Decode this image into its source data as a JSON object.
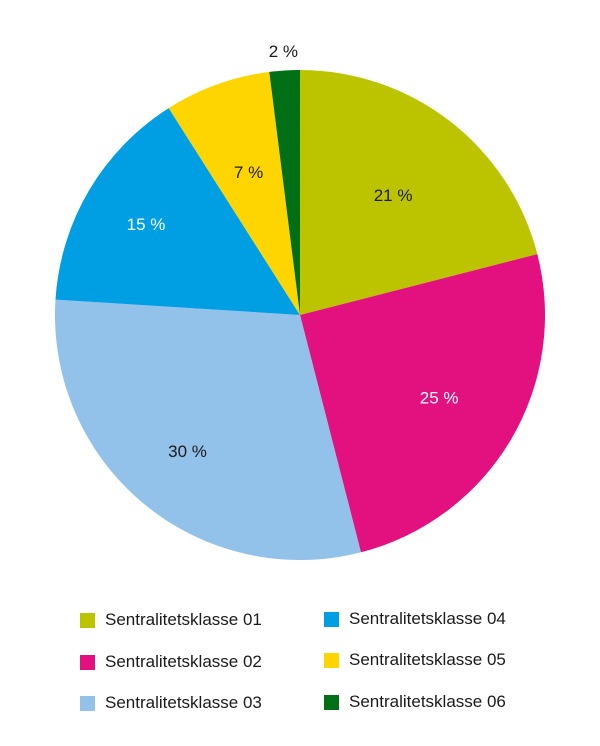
{
  "chart_data": {
    "type": "pie",
    "title": "",
    "categories": [
      "Sentralitetsklasse 01",
      "Sentralitetsklasse 02",
      "Sentralitetsklasse 03",
      "Sentralitetsklasse 04",
      "Sentralitetsklasse 05",
      "Sentralitetsklasse 06"
    ],
    "values": [
      21,
      25,
      30,
      15,
      7,
      2
    ],
    "labels": [
      "21 %",
      "25 %",
      "30 %",
      "15 %",
      "7 %",
      "2 %"
    ],
    "colors": [
      "#bcc400",
      "#e2117f",
      "#92c1e9",
      "#009fe3",
      "#ffd500",
      "#006f16"
    ],
    "label_colors": [
      "#1a1a1a",
      "#ffffff",
      "#1a1a1a",
      "#ffffff",
      "#1a1a1a",
      "#1a1a1a"
    ],
    "start_angle_deg": 0,
    "direction": "clockwise",
    "legend_position": "bottom"
  },
  "legend": {
    "items": [
      {
        "label": "Sentralitetsklasse 01",
        "color": "#bcc400"
      },
      {
        "label": "Sentralitetsklasse 02",
        "color": "#e2117f"
      },
      {
        "label": "Sentralitetsklasse 03",
        "color": "#92c1e9"
      },
      {
        "label": "Sentralitetsklasse 04",
        "color": "#009fe3"
      },
      {
        "label": "Sentralitetsklasse 05",
        "color": "#ffd500"
      },
      {
        "label": "Sentralitetsklasse 06",
        "color": "#006f16"
      }
    ]
  }
}
